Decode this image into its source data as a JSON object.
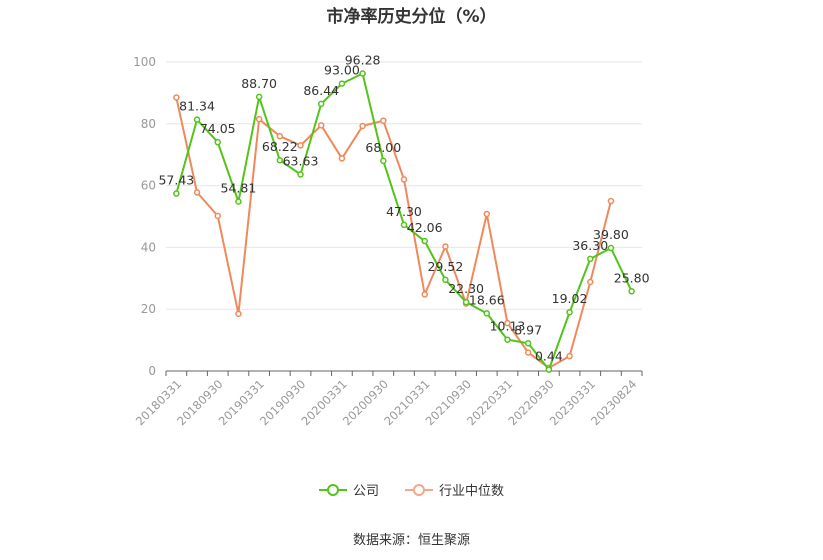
{
  "chart_data": {
    "type": "line",
    "title": "市净率历史分位（%）",
    "xlabel": "",
    "ylabel": "",
    "ylim": [
      0,
      100
    ],
    "yticks": [
      0,
      20,
      40,
      60,
      80,
      100
    ],
    "x": [
      "20180331",
      "20180630",
      "20180930",
      "20181231",
      "20190331",
      "20190630",
      "20190930",
      "20191231",
      "20200331",
      "20200630",
      "20200930",
      "20201231",
      "20210331",
      "20210630",
      "20210930",
      "20211231",
      "20220331",
      "20220630",
      "20220930",
      "20221231",
      "20230331",
      "20230630",
      "20230824"
    ],
    "x_tick_labels": [
      "20180331",
      "",
      "20180930",
      "",
      "20190331",
      "",
      "20190930",
      "",
      "20200331",
      "",
      "20200930",
      "",
      "20210331",
      "",
      "20210930",
      "",
      "20220331",
      "",
      "20220930",
      "",
      "20230331",
      "",
      "20230824"
    ],
    "grid": true,
    "legend_position": "bottom",
    "series": [
      {
        "name": "公司",
        "color": "#52c41a",
        "values": [
          57.43,
          81.34,
          74.05,
          54.81,
          88.7,
          68.22,
          63.63,
          86.44,
          93.0,
          96.28,
          68.0,
          47.3,
          42.06,
          29.52,
          22.3,
          18.66,
          10.13,
          8.97,
          0.44,
          19.02,
          36.3,
          39.8,
          25.8
        ],
        "labels": [
          "57.43",
          "81.34",
          "74.05",
          "54.81",
          "88.70",
          "68.22",
          "63.63",
          "86.44",
          "93.00",
          "96.28",
          "68.00",
          "47.30",
          "42.06",
          "29.52",
          "22.30",
          "18.66",
          "10.13",
          "8.97",
          "0.44",
          "19.02",
          "36.30",
          "39.80",
          "25.80"
        ]
      },
      {
        "name": "行业中位数",
        "color": "#f0895a",
        "values": [
          88.5,
          57.8,
          50.2,
          18.5,
          81.5,
          76.0,
          73.0,
          79.5,
          68.8,
          79.3,
          81.0,
          62.0,
          24.8,
          40.3,
          21.8,
          50.8,
          15.5,
          6.0,
          1.0,
          4.8,
          28.8,
          55.0,
          null
        ]
      }
    ]
  },
  "legend": {
    "items": [
      {
        "label": "公司",
        "color": "#52c41a"
      },
      {
        "label": "行业中位数",
        "color": "#f0a98a"
      }
    ]
  },
  "source": "数据来源：恒生聚源"
}
